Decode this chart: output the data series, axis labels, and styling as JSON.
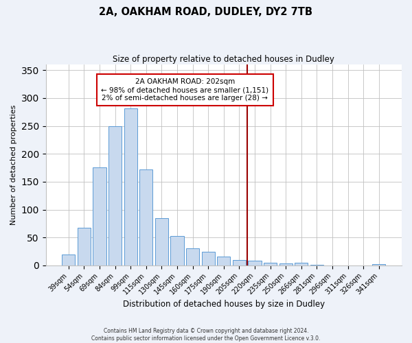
{
  "title": "2A, OAKHAM ROAD, DUDLEY, DY2 7TB",
  "subtitle": "Size of property relative to detached houses in Dudley",
  "xlabel": "Distribution of detached houses by size in Dudley",
  "ylabel": "Number of detached properties",
  "bar_labels": [
    "39sqm",
    "54sqm",
    "69sqm",
    "84sqm",
    "99sqm",
    "115sqm",
    "130sqm",
    "145sqm",
    "160sqm",
    "175sqm",
    "190sqm",
    "205sqm",
    "220sqm",
    "235sqm",
    "250sqm",
    "266sqm",
    "281sqm",
    "296sqm",
    "311sqm",
    "326sqm",
    "341sqm"
  ],
  "bar_values": [
    20,
    67,
    176,
    249,
    281,
    172,
    85,
    53,
    30,
    24,
    16,
    10,
    8,
    5,
    3,
    5,
    1,
    0,
    0,
    0,
    2
  ],
  "bar_color": "#c8d9ee",
  "bar_edge_color": "#5b9bd5",
  "vline_color": "#990000",
  "annotation_title": "2A OAKHAM ROAD: 202sqm",
  "annotation_line1": "← 98% of detached houses are smaller (1,151)",
  "annotation_line2": "2% of semi-detached houses are larger (28) →",
  "annotation_box_edge": "#cc0000",
  "ylim": [
    0,
    360
  ],
  "yticks": [
    0,
    50,
    100,
    150,
    200,
    250,
    300,
    350
  ],
  "footer1": "Contains HM Land Registry data © Crown copyright and database right 2024.",
  "footer2": "Contains public sector information licensed under the Open Government Licence v.3.0.",
  "bg_color": "#eef2f9",
  "plot_bg_color": "#ffffff"
}
